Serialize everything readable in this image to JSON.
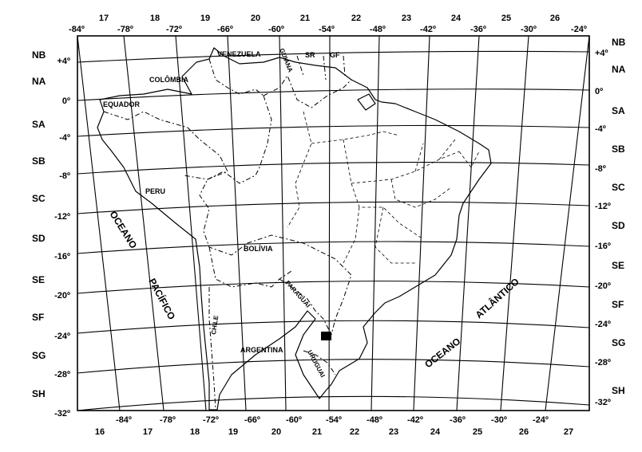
{
  "lon_labels_top": [
    "-84º",
    "-78º",
    "-72º",
    "-66º",
    "-60º",
    "-54º",
    "-48º",
    "-42º",
    "-36º",
    "-30º",
    "-24º"
  ],
  "lon_labels_bottom": [
    "-84º",
    "-78º",
    "-72º",
    "-66º",
    "-60º",
    "-54º",
    "-48º",
    "-42º",
    "-36º",
    "-30º",
    "-24º"
  ],
  "zone_numbers_top": [
    "17",
    "18",
    "19",
    "20",
    "21",
    "22",
    "23",
    "24",
    "25",
    "26"
  ],
  "zone_numbers_bottom": [
    "16",
    "17",
    "18",
    "19",
    "20",
    "21",
    "22",
    "23",
    "24",
    "25",
    "26",
    "27"
  ],
  "lat_labels_left": [
    "+4º",
    "0º",
    "-4º",
    "-8º",
    "-12º",
    "-16º",
    "-20º",
    "-24º",
    "-28º",
    "-32º"
  ],
  "lat_labels_right": [
    "+4º",
    "0º",
    "-4º",
    "-8º",
    "-12º",
    "-16º",
    "-20º",
    "-24º",
    "-28º",
    "-32º"
  ],
  "band_labels_left": [
    "NB",
    "NA",
    "SA",
    "SB",
    "SC",
    "SD",
    "SE",
    "SF",
    "SG",
    "SH"
  ],
  "band_labels_right": [
    "NB",
    "NA",
    "SA",
    "SB",
    "SC",
    "SD",
    "SE",
    "SF",
    "SG",
    "SH"
  ],
  "countries": {
    "venezuela": "VENEZUELA",
    "guiana": "GUIANA",
    "suriname": "SR",
    "french_guiana": "GF",
    "colombia": "COLÔMBIA",
    "ecuador": "EQUADOR",
    "peru": "PERU",
    "bolivia": "BOLÍVIA",
    "paraguay": "PARAGUAI",
    "chile": "CHILE",
    "argentina": "ARGENTINA",
    "uruguay": "URUGUAI"
  },
  "oceans": {
    "pacific_1": "OCEANO",
    "pacific_2": "PACÍFICO",
    "atlantic_1": "OCEANO",
    "atlantic_2": "ATLÂNTICO"
  }
}
